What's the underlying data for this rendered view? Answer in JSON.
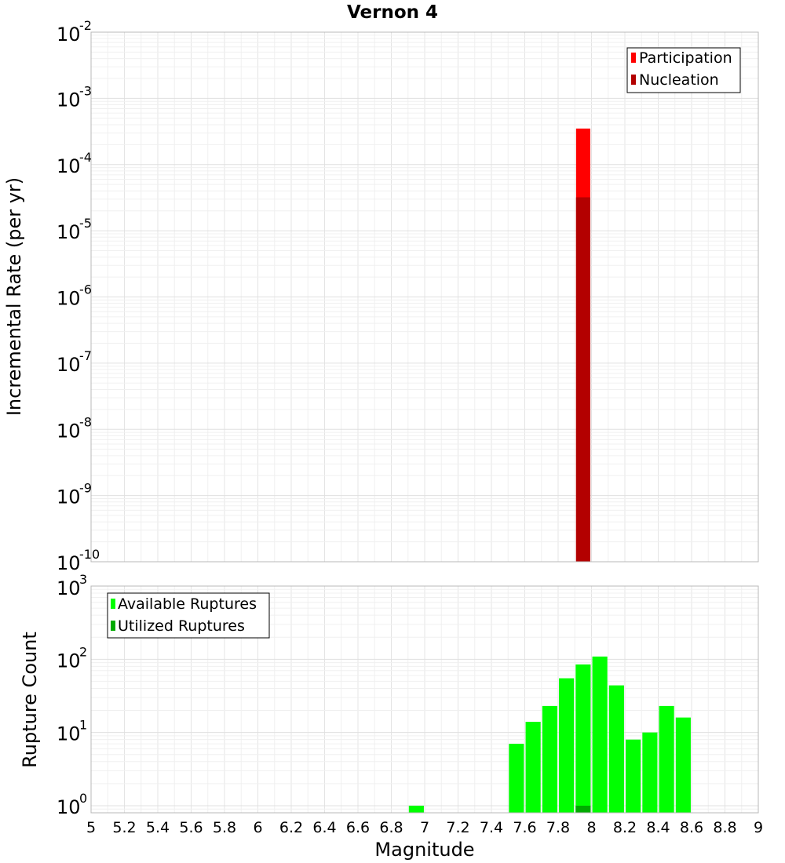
{
  "title": "Vernon 4",
  "xlabel": "Magnitude",
  "x_tick_labels": [
    "5",
    "5.2",
    "5.4",
    "5.6",
    "5.8",
    "6",
    "6.2",
    "6.4",
    "6.6",
    "6.8",
    "7",
    "7.2",
    "7.4",
    "7.6",
    "7.8",
    "8",
    "8.2",
    "8.4",
    "8.6",
    "8.8",
    "9"
  ],
  "chart_data": [
    {
      "type": "bar",
      "title": "Vernon 4",
      "xlabel": "Magnitude",
      "ylabel": "Incremental Rate (per yr)",
      "xlim": [
        5,
        9
      ],
      "ylim": [
        1e-10,
        0.01
      ],
      "y_scale": "log",
      "y_tick_labels": [
        {
          "base": "10",
          "exp": "-2",
          "value": 0.01
        },
        {
          "base": "10",
          "exp": "-3",
          "value": 0.001
        },
        {
          "base": "10",
          "exp": "-4",
          "value": 0.0001
        },
        {
          "base": "10",
          "exp": "-5",
          "value": 1e-05
        },
        {
          "base": "10",
          "exp": "-6",
          "value": 1e-06
        },
        {
          "base": "10",
          "exp": "-7",
          "value": 1e-07
        },
        {
          "base": "10",
          "exp": "-8",
          "value": 1e-08
        },
        {
          "base": "10",
          "exp": "-9",
          "value": 1e-09
        },
        {
          "base": "10",
          "exp": "-10",
          "value": 1e-10
        }
      ],
      "legend_position": "top-right",
      "grid": true,
      "bar_width": 0.085,
      "series": [
        {
          "name": "Participation",
          "color": "#ff0000",
          "x": [
            7.95
          ],
          "values": [
            0.00035
          ]
        },
        {
          "name": "Nucleation",
          "color": "#b30000",
          "x": [
            7.95
          ],
          "values": [
            3.2e-05
          ]
        }
      ]
    },
    {
      "type": "bar",
      "xlabel": "Magnitude",
      "ylabel": "Rupture Count",
      "xlim": [
        5,
        9
      ],
      "ylim": [
        0.8,
        1000
      ],
      "y_scale": "log",
      "y_tick_labels": [
        {
          "base": "10",
          "exp": "3",
          "value": 1000
        },
        {
          "base": "10",
          "exp": "2",
          "value": 100
        },
        {
          "base": "10",
          "exp": "1",
          "value": 10
        },
        {
          "base": "10",
          "exp": "0",
          "value": 1
        }
      ],
      "legend_position": "top-left",
      "grid": true,
      "bar_width": 0.09,
      "series": [
        {
          "name": "Available Ruptures",
          "color": "#00ff00",
          "x": [
            6.95,
            7.55,
            7.65,
            7.75,
            7.85,
            7.95,
            8.05,
            8.15,
            8.25,
            8.35,
            8.45,
            8.55
          ],
          "values": [
            1,
            7,
            14,
            23,
            55,
            85,
            109,
            44,
            8,
            10,
            23,
            16
          ]
        },
        {
          "name": "Utilized Ruptures",
          "color": "#00aa00",
          "x": [
            7.95
          ],
          "values": [
            1
          ]
        }
      ]
    }
  ]
}
